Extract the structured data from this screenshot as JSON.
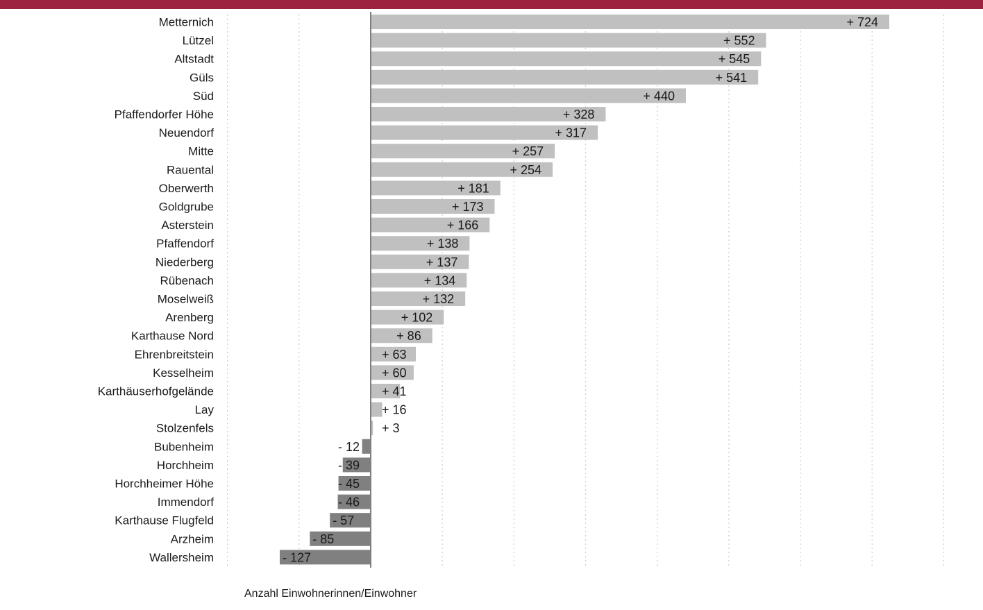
{
  "header": {
    "band_color": "#9b2340"
  },
  "chart_data": {
    "type": "bar",
    "orientation": "horizontal",
    "categories": [
      "Metternich",
      "Lützel",
      "Altstadt",
      "Güls",
      "Süd",
      "Pfaffendorfer Höhe",
      "Neuendorf",
      "Mitte",
      "Rauental",
      "Oberwerth",
      "Goldgrube",
      "Asterstein",
      "Pfaffendorf",
      "Niederberg",
      "Rübenach",
      "Moselweiß",
      "Arenberg",
      "Karthause Nord",
      "Ehrenbreitstein",
      "Kesselheim",
      "Karthäuserhofgelände",
      "Lay",
      "Stolzenfels",
      "Bubenheim",
      "Horchheim",
      "Horchheimer Höhe",
      "Immendorf",
      "Karthause Flugfeld",
      "Arzheim",
      "Wallersheim"
    ],
    "values": [
      724,
      552,
      545,
      541,
      440,
      328,
      317,
      257,
      254,
      181,
      173,
      166,
      138,
      137,
      134,
      132,
      102,
      86,
      63,
      60,
      41,
      16,
      3,
      -12,
      -39,
      -45,
      -46,
      -57,
      -85,
      -127
    ],
    "value_labels": [
      "+ 724",
      "+ 552",
      "+ 545",
      "+ 541",
      "+ 440",
      "+ 328",
      "+ 317",
      "+ 257",
      "+ 254",
      "+ 181",
      "+ 173",
      "+ 166",
      "+ 138",
      "+ 137",
      "+ 134",
      "+ 132",
      "+ 102",
      "+ 86",
      "+ 63",
      "+ 60",
      "+ 41",
      "+ 16",
      "+ 3",
      "- 12",
      "- 39",
      "- 45",
      "- 46",
      "- 57",
      "- 85",
      "- 127"
    ],
    "xlabel": "Anzahl Einwohnerinnen/Einwohner",
    "xlim": [
      -200,
      800
    ],
    "grid": "vertical dotted",
    "colors": {
      "positive": "#c0c0c0",
      "negative": "#808080",
      "axis": "#7f7f7f",
      "grid": "#cccccc"
    }
  }
}
